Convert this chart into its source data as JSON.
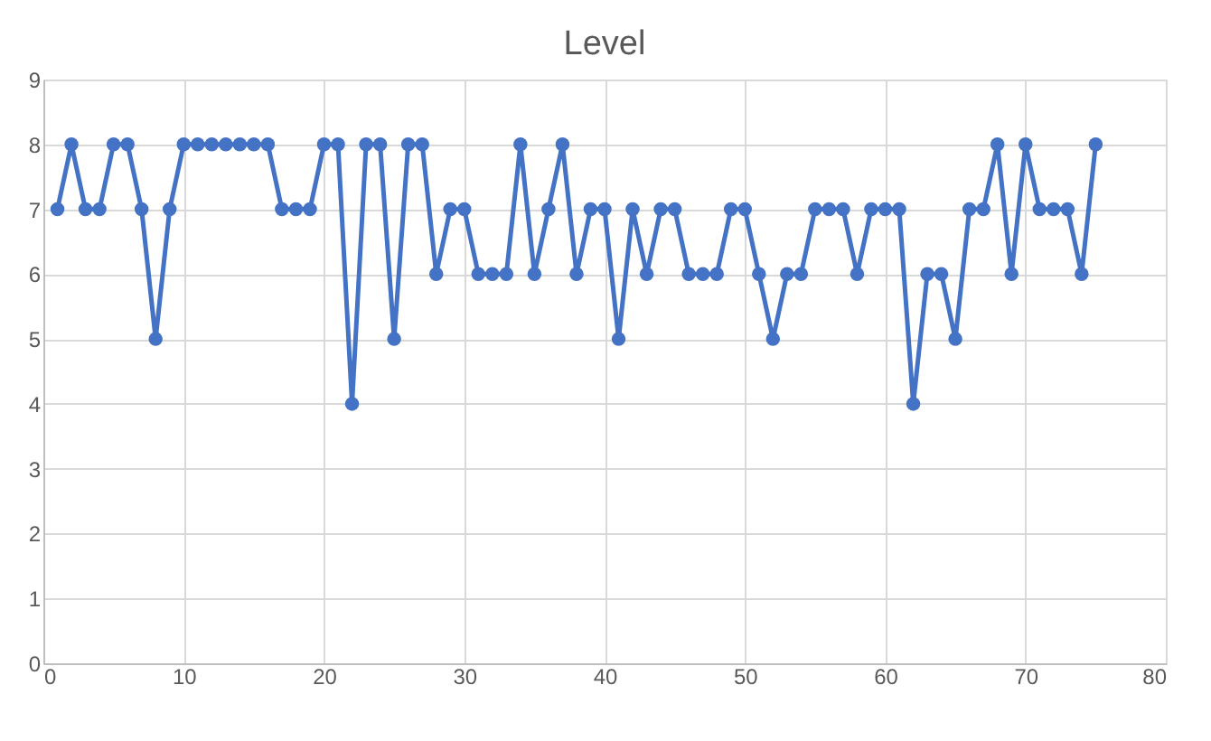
{
  "chart_data": {
    "type": "line",
    "title": "Level",
    "x": [
      1,
      2,
      3,
      4,
      5,
      6,
      7,
      8,
      9,
      10,
      11,
      12,
      13,
      14,
      15,
      16,
      17,
      18,
      19,
      20,
      21,
      22,
      23,
      24,
      25,
      26,
      27,
      28,
      29,
      30,
      31,
      32,
      33,
      34,
      35,
      36,
      37,
      38,
      39,
      40,
      41,
      42,
      43,
      44,
      45,
      46,
      47,
      48,
      49,
      50,
      51,
      52,
      53,
      54,
      55,
      56,
      57,
      58,
      59,
      60,
      61,
      62,
      63,
      64,
      65,
      66,
      67,
      68,
      69,
      70,
      71,
      72,
      73,
      74,
      75
    ],
    "series": [
      {
        "color": "#4472c4",
        "values": [
          7,
          8,
          7,
          7,
          8,
          8,
          7,
          5,
          7,
          8,
          8,
          8,
          8,
          8,
          8,
          8,
          7,
          7,
          7,
          8,
          8,
          4,
          8,
          8,
          5,
          8,
          8,
          6,
          7,
          7,
          6,
          6,
          6,
          8,
          6,
          7,
          8,
          6,
          7,
          7,
          5,
          7,
          6,
          7,
          7,
          6,
          6,
          6,
          7,
          7,
          6,
          5,
          6,
          6,
          7,
          7,
          7,
          6,
          7,
          7,
          7,
          4,
          6,
          6,
          5,
          7,
          7,
          8,
          6,
          8,
          7,
          7,
          7,
          6,
          8
        ]
      }
    ],
    "xlim": [
      0,
      80
    ],
    "xticks": [
      0,
      10,
      20,
      30,
      40,
      50,
      60,
      70,
      80
    ],
    "ylim": [
      0,
      9
    ],
    "yticks": [
      0,
      1,
      2,
      3,
      4,
      5,
      6,
      7,
      8,
      9
    ],
    "grid": true,
    "marker": "circle",
    "line_style": "solid",
    "legend": false
  }
}
